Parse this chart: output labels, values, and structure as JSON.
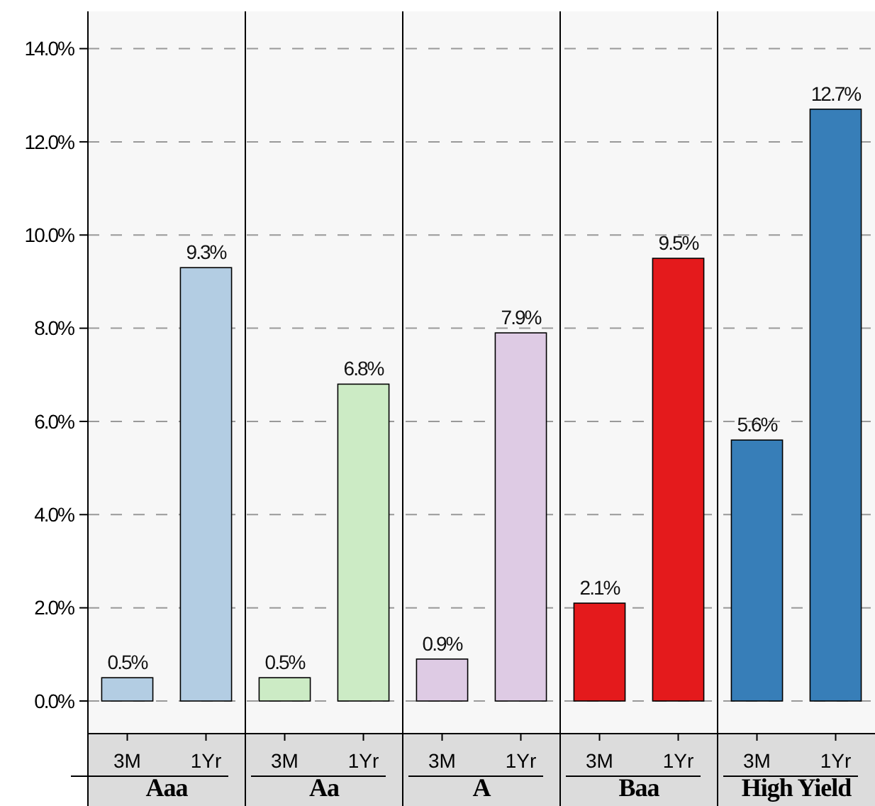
{
  "chart_data": {
    "type": "bar",
    "categories": [
      "3M",
      "1Yr",
      "3M",
      "1Yr",
      "3M",
      "1Yr",
      "3M",
      "1Yr",
      "3M",
      "1Yr"
    ],
    "series": [
      {
        "name": "Aaa",
        "color": "#b3cde3",
        "values": [
          0.5,
          9.3,
          null,
          null,
          null,
          null,
          null,
          null,
          null,
          null
        ],
        "value_labels": [
          "0.5%",
          "9.3%",
          null,
          null,
          null,
          null,
          null,
          null,
          null,
          null
        ]
      },
      {
        "name": "Aa",
        "color": "#ccebc5",
        "values": [
          null,
          null,
          0.5,
          6.8,
          null,
          null,
          null,
          null,
          null,
          null
        ],
        "value_labels": [
          null,
          null,
          "0.5%",
          "6.8%",
          null,
          null,
          null,
          null,
          null,
          null
        ]
      },
      {
        "name": "A",
        "color": "#decbe4",
        "values": [
          null,
          null,
          null,
          null,
          0.9,
          7.9,
          null,
          null,
          null,
          null
        ],
        "value_labels": [
          null,
          null,
          null,
          null,
          "0.9%",
          "7.9%",
          null,
          null,
          null,
          null
        ]
      },
      {
        "name": "Baa",
        "color": "#e41a1c",
        "values": [
          null,
          null,
          null,
          null,
          null,
          null,
          2.1,
          9.5,
          null,
          null
        ],
        "value_labels": [
          null,
          null,
          null,
          null,
          null,
          null,
          "2.1%",
          "9.5%",
          null,
          null
        ]
      },
      {
        "name": "High Yield",
        "color": "#377eb8",
        "values": [
          null,
          null,
          null,
          null,
          null,
          null,
          null,
          null,
          5.6,
          12.7
        ],
        "value_labels": [
          null,
          null,
          null,
          null,
          null,
          null,
          null,
          null,
          "5.6%",
          "12.7%"
        ]
      }
    ],
    "ylim": [
      -0.7,
      14.8
    ],
    "yticks": [
      {
        "value": 0,
        "label": "0.0%"
      },
      {
        "value": 2,
        "label": "2.0%"
      },
      {
        "value": 4,
        "label": "4.0%"
      },
      {
        "value": 6,
        "label": "6.0%"
      },
      {
        "value": 8,
        "label": "8.0%"
      },
      {
        "value": 10,
        "label": "10.0%"
      },
      {
        "value": 12,
        "label": "12.0%"
      },
      {
        "value": 14,
        "label": "14.0%"
      }
    ],
    "grid": "y",
    "legend": "bottom"
  }
}
